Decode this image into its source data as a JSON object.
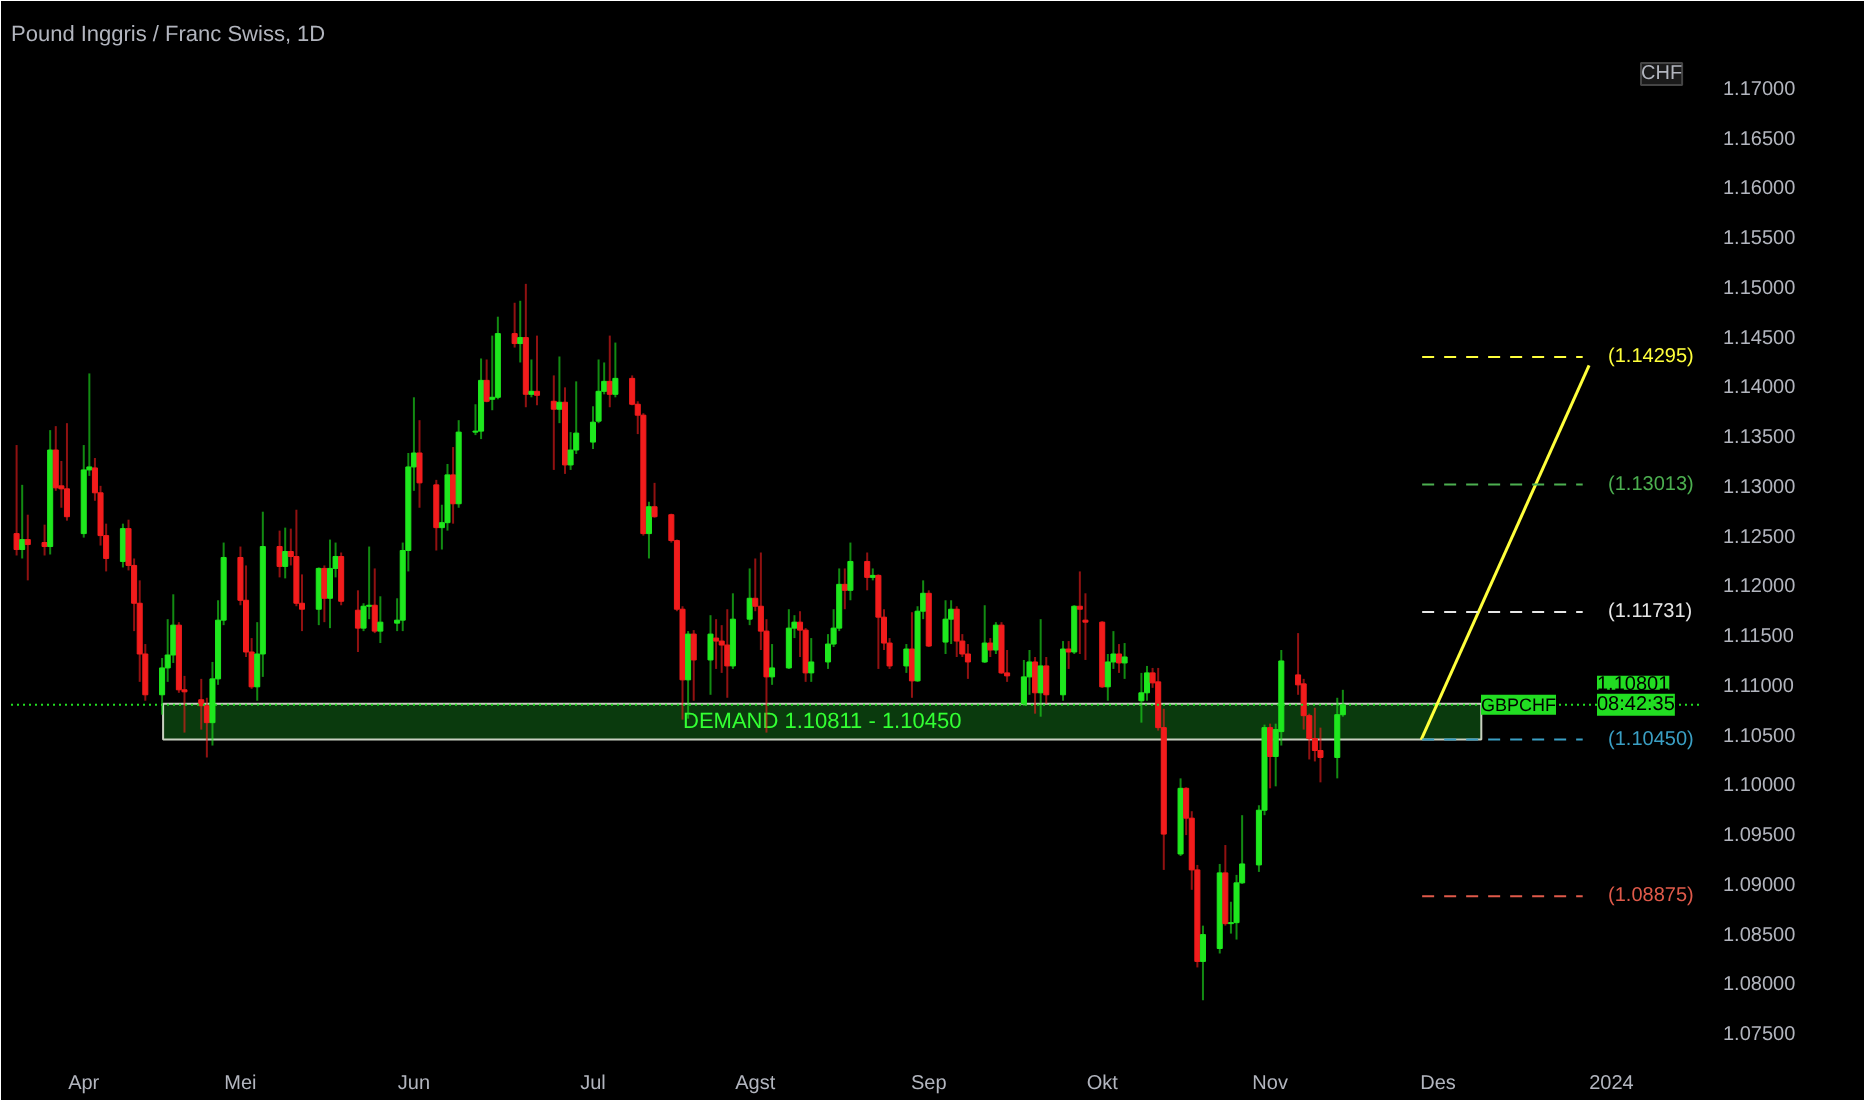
{
  "chart_data": {
    "type": "candlestick",
    "title": "Pound Inggris / Franc Swiss, 1D",
    "ylabel": "CHF",
    "x": [
      "2023-03-22",
      "2023-03-23",
      "2023-03-24",
      "2023-03-27",
      "2023-03-28",
      "2023-03-29",
      "2023-03-30",
      "2023-03-31",
      "2023-04-03",
      "2023-04-04",
      "2023-04-05",
      "2023-04-06",
      "2023-04-07",
      "2023-04-10",
      "2023-04-11",
      "2023-04-12",
      "2023-04-13",
      "2023-04-14",
      "2023-04-17",
      "2023-04-18",
      "2023-04-19",
      "2023-04-20",
      "2023-04-21",
      "2023-04-24",
      "2023-04-25",
      "2023-04-26",
      "2023-04-27",
      "2023-04-28",
      "2023-05-01",
      "2023-05-02",
      "2023-05-03",
      "2023-05-04",
      "2023-05-05",
      "2023-05-08",
      "2023-05-09",
      "2023-05-10",
      "2023-05-11",
      "2023-05-12",
      "2023-05-15",
      "2023-05-16",
      "2023-05-17",
      "2023-05-18",
      "2023-05-19",
      "2023-05-22",
      "2023-05-23",
      "2023-05-24",
      "2023-05-25",
      "2023-05-26",
      "2023-05-29",
      "2023-05-30",
      "2023-05-31",
      "2023-06-01",
      "2023-06-02",
      "2023-06-05",
      "2023-06-06",
      "2023-06-07",
      "2023-06-08",
      "2023-06-09",
      "2023-06-12",
      "2023-06-13",
      "2023-06-14",
      "2023-06-15",
      "2023-06-16",
      "2023-06-19",
      "2023-06-20",
      "2023-06-21",
      "2023-06-22",
      "2023-06-23",
      "2023-06-26",
      "2023-06-27",
      "2023-06-28",
      "2023-06-29",
      "2023-06-30",
      "2023-07-03",
      "2023-07-04",
      "2023-07-05",
      "2023-07-06",
      "2023-07-07",
      "2023-07-10",
      "2023-07-11",
      "2023-07-12",
      "2023-07-13",
      "2023-07-14",
      "2023-07-17",
      "2023-07-18",
      "2023-07-19",
      "2023-07-20",
      "2023-07-21",
      "2023-07-24",
      "2023-07-25",
      "2023-07-26",
      "2023-07-27",
      "2023-07-28",
      "2023-07-31",
      "2023-08-01",
      "2023-08-02",
      "2023-08-03",
      "2023-08-04",
      "2023-08-07",
      "2023-08-08",
      "2023-08-09",
      "2023-08-10",
      "2023-08-11",
      "2023-08-14",
      "2023-08-15",
      "2023-08-16",
      "2023-08-17",
      "2023-08-18",
      "2023-08-21",
      "2023-08-22",
      "2023-08-23",
      "2023-08-24",
      "2023-08-25",
      "2023-08-28",
      "2023-08-29",
      "2023-08-30",
      "2023-08-31",
      "2023-09-01",
      "2023-09-04",
      "2023-09-05",
      "2023-09-06",
      "2023-09-07",
      "2023-09-08",
      "2023-09-11",
      "2023-09-12",
      "2023-09-13",
      "2023-09-14",
      "2023-09-15",
      "2023-09-18",
      "2023-09-19",
      "2023-09-20",
      "2023-09-21",
      "2023-09-22",
      "2023-09-25",
      "2023-09-26",
      "2023-09-27",
      "2023-09-28",
      "2023-09-29",
      "2023-10-02",
      "2023-10-03",
      "2023-10-04",
      "2023-10-05",
      "2023-10-06",
      "2023-10-09",
      "2023-10-10",
      "2023-10-11",
      "2023-10-12",
      "2023-10-13",
      "2023-10-16",
      "2023-10-17",
      "2023-10-18",
      "2023-10-19",
      "2023-10-20",
      "2023-10-23",
      "2023-10-24",
      "2023-10-25",
      "2023-10-26",
      "2023-10-27",
      "2023-10-30",
      "2023-10-31",
      "2023-11-01",
      "2023-11-02",
      "2023-11-03",
      "2023-11-06",
      "2023-11-07",
      "2023-11-08",
      "2023-11-09",
      "2023-11-10",
      "2023-11-13",
      "2023-11-14"
    ],
    "ohlc": [
      [
        1.1252,
        1.1341,
        1.123,
        1.1236
      ],
      [
        1.1236,
        1.1301,
        1.1227,
        1.1246
      ],
      [
        1.1246,
        1.1271,
        1.1205,
        1.1241
      ],
      [
        1.1243,
        1.1261,
        1.123,
        1.1239
      ],
      [
        1.1239,
        1.1356,
        1.1231,
        1.1336
      ],
      [
        1.1336,
        1.136,
        1.1295,
        1.1298
      ],
      [
        1.13,
        1.1325,
        1.1278,
        1.1297
      ],
      [
        1.1297,
        1.1363,
        1.1265,
        1.1269
      ],
      [
        1.1252,
        1.1341,
        1.1248,
        1.1316
      ],
      [
        1.1316,
        1.1413,
        1.131,
        1.1319
      ],
      [
        1.1318,
        1.1328,
        1.1285,
        1.1293
      ],
      [
        1.1293,
        1.13,
        1.124,
        1.125
      ],
      [
        1.125,
        1.1262,
        1.1214,
        1.1227
      ],
      [
        1.1224,
        1.1262,
        1.1218,
        1.1257
      ],
      [
        1.1257,
        1.1266,
        1.1215,
        1.122
      ],
      [
        1.122,
        1.1227,
        1.1154,
        1.1182
      ],
      [
        1.1182,
        1.1205,
        1.1103,
        1.1131
      ],
      [
        1.1131,
        1.1141,
        1.1084,
        1.109
      ],
      [
        1.109,
        1.1127,
        1.107,
        1.1117
      ],
      [
        1.1117,
        1.1166,
        1.1103,
        1.113
      ],
      [
        1.113,
        1.1191,
        1.1122,
        1.116
      ],
      [
        1.116,
        1.1163,
        1.1092,
        1.1095
      ],
      [
        1.1095,
        1.1109,
        1.1052,
        1.1093
      ],
      [
        1.1085,
        1.1106,
        1.1055,
        1.1079
      ],
      [
        1.1079,
        1.1087,
        1.1027,
        1.1062
      ],
      [
        1.1062,
        1.1123,
        1.1039,
        1.1106
      ],
      [
        1.1106,
        1.1185,
        1.11,
        1.1165
      ],
      [
        1.1165,
        1.1243,
        1.116,
        1.1228
      ],
      [
        1.1228,
        1.1239,
        1.118,
        1.1185
      ],
      [
        1.1185,
        1.122,
        1.1128,
        1.1133
      ],
      [
        1.1133,
        1.1147,
        1.1096,
        1.1098
      ],
      [
        1.1098,
        1.1163,
        1.1084,
        1.1131
      ],
      [
        1.1131,
        1.1274,
        1.1108,
        1.1239
      ],
      [
        1.1239,
        1.1255,
        1.1208,
        1.1219
      ],
      [
        1.1219,
        1.1258,
        1.1207,
        1.1234
      ],
      [
        1.1234,
        1.1257,
        1.122,
        1.1229
      ],
      [
        1.1229,
        1.1276,
        1.1179,
        1.1182
      ],
      [
        1.1182,
        1.1211,
        1.1154,
        1.1176
      ],
      [
        1.1176,
        1.1218,
        1.116,
        1.1217
      ],
      [
        1.1217,
        1.122,
        1.1163,
        1.1187
      ],
      [
        1.1187,
        1.1246,
        1.1157,
        1.1217
      ],
      [
        1.1217,
        1.1243,
        1.1208,
        1.1229
      ],
      [
        1.1229,
        1.1233,
        1.118,
        1.1184
      ],
      [
        1.1175,
        1.1195,
        1.1133,
        1.1157
      ],
      [
        1.1157,
        1.1182,
        1.1154,
        1.1179
      ],
      [
        1.1179,
        1.1239,
        1.1166,
        1.118
      ],
      [
        1.118,
        1.1217,
        1.1152,
        1.1154
      ],
      [
        1.1154,
        1.1189,
        1.1142,
        1.1163
      ],
      [
        1.1162,
        1.1187,
        1.1154,
        1.1165
      ],
      [
        1.1165,
        1.1243,
        1.1154,
        1.1235
      ],
      [
        1.1235,
        1.1333,
        1.1214,
        1.1319
      ],
      [
        1.1319,
        1.1389,
        1.1295,
        1.1333
      ],
      [
        1.1333,
        1.1366,
        1.1278,
        1.1303
      ],
      [
        1.1301,
        1.1306,
        1.1235,
        1.1258
      ],
      [
        1.1258,
        1.1281,
        1.1236,
        1.1263
      ],
      [
        1.1263,
        1.1322,
        1.1255,
        1.1311
      ],
      [
        1.1311,
        1.1339,
        1.1262,
        1.1282
      ],
      [
        1.1282,
        1.1366,
        1.1278,
        1.1354
      ],
      [
        1.1354,
        1.1382,
        1.1351,
        1.1355
      ],
      [
        1.1355,
        1.1428,
        1.1347,
        1.1406
      ],
      [
        1.1406,
        1.1427,
        1.1384,
        1.1385
      ],
      [
        1.1387,
        1.1451,
        1.1376,
        1.1389
      ],
      [
        1.1389,
        1.147,
        1.1387,
        1.1453
      ],
      [
        1.1453,
        1.1484,
        1.1439,
        1.1443
      ],
      [
        1.1443,
        1.1486,
        1.1424,
        1.1449
      ],
      [
        1.1449,
        1.1503,
        1.1379,
        1.1392
      ],
      [
        1.1392,
        1.1427,
        1.1389,
        1.1395
      ],
      [
        1.1395,
        1.1451,
        1.1381,
        1.1391
      ],
      [
        1.1385,
        1.1411,
        1.1316,
        1.1377
      ],
      [
        1.1377,
        1.143,
        1.1363,
        1.1384
      ],
      [
        1.1384,
        1.1399,
        1.1312,
        1.1321
      ],
      [
        1.1321,
        1.1354,
        1.1316,
        1.1336
      ],
      [
        1.1336,
        1.1405,
        1.1332,
        1.1353
      ],
      [
        1.1344,
        1.138,
        1.1337,
        1.1364
      ],
      [
        1.1365,
        1.1427,
        1.1363,
        1.1395
      ],
      [
        1.1395,
        1.1424,
        1.1392,
        1.1405
      ],
      [
        1.1405,
        1.1451,
        1.1379,
        1.1392
      ],
      [
        1.1392,
        1.1444,
        1.1389,
        1.1408
      ],
      [
        1.1408,
        1.1411,
        1.1381,
        1.1382
      ],
      [
        1.1382,
        1.1385,
        1.1352,
        1.1371
      ],
      [
        1.1371,
        1.1373,
        1.125,
        1.1252
      ],
      [
        1.1252,
        1.1284,
        1.1227,
        1.1279
      ],
      [
        1.1279,
        1.1303,
        1.1268,
        1.1269
      ],
      [
        1.1271,
        1.1272,
        1.1243,
        1.1245
      ],
      [
        1.1245,
        1.1246,
        1.1174,
        1.1176
      ],
      [
        1.1176,
        1.1179,
        1.1065,
        1.1105
      ],
      [
        1.1105,
        1.1154,
        1.1066,
        1.1151
      ],
      [
        1.1151,
        1.1155,
        1.1084,
        1.1125
      ],
      [
        1.1125,
        1.117,
        1.109,
        1.1151
      ],
      [
        1.1147,
        1.1166,
        1.1116,
        1.1144
      ],
      [
        1.1144,
        1.116,
        1.1112,
        1.114
      ],
      [
        1.114,
        1.1176,
        1.1087,
        1.1119
      ],
      [
        1.1119,
        1.1192,
        1.1116,
        1.1166
      ],
      [
        1.1166,
        1.1217,
        1.116,
        1.1187
      ],
      [
        1.1187,
        1.1227,
        1.1174,
        1.1179
      ],
      [
        1.1179,
        1.1233,
        1.1135,
        1.1154
      ],
      [
        1.1154,
        1.1166,
        1.1052,
        1.1108
      ],
      [
        1.1108,
        1.1141,
        1.11,
        1.1117
      ],
      [
        1.1117,
        1.1176,
        1.1116,
        1.1157
      ],
      [
        1.1157,
        1.117,
        1.1147,
        1.1163
      ],
      [
        1.1163,
        1.1174,
        1.1128,
        1.1155
      ],
      [
        1.1155,
        1.1157,
        1.1103,
        1.1112
      ],
      [
        1.1112,
        1.1147,
        1.1103,
        1.1123
      ],
      [
        1.1123,
        1.1151,
        1.1116,
        1.1141
      ],
      [
        1.1141,
        1.1176,
        1.1138,
        1.1157
      ],
      [
        1.1157,
        1.1217,
        1.1154,
        1.1201
      ],
      [
        1.1201,
        1.1217,
        1.1176,
        1.1195
      ],
      [
        1.1195,
        1.1243,
        1.1185,
        1.1224
      ],
      [
        1.1224,
        1.1233,
        1.1195,
        1.1208
      ],
      [
        1.1208,
        1.1217,
        1.1205,
        1.121
      ],
      [
        1.121,
        1.1211,
        1.1116,
        1.1168
      ],
      [
        1.1168,
        1.1176,
        1.1135,
        1.1142
      ],
      [
        1.1142,
        1.1147,
        1.1116,
        1.1119
      ],
      [
        1.1119,
        1.1141,
        1.1112,
        1.1136
      ],
      [
        1.1136,
        1.1173,
        1.1087,
        1.1104
      ],
      [
        1.1104,
        1.1179,
        1.1103,
        1.1174
      ],
      [
        1.1174,
        1.1205,
        1.1166,
        1.1192
      ],
      [
        1.1192,
        1.1195,
        1.1138,
        1.1139
      ],
      [
        1.1143,
        1.1185,
        1.1131,
        1.1166
      ],
      [
        1.1166,
        1.1185,
        1.1141,
        1.1176
      ],
      [
        1.1176,
        1.1179,
        1.1128,
        1.1144
      ],
      [
        1.1144,
        1.1151,
        1.1128,
        1.1131
      ],
      [
        1.1131,
        1.1141,
        1.1106,
        1.1123
      ],
      [
        1.1123,
        1.118,
        1.1122,
        1.1142
      ],
      [
        1.1142,
        1.1147,
        1.1128,
        1.1135
      ],
      [
        1.1135,
        1.1163,
        1.1131,
        1.116
      ],
      [
        1.116,
        1.1163,
        1.1111,
        1.1112
      ],
      [
        1.1112,
        1.1135,
        1.1103,
        1.1109
      ],
      [
        1.1081,
        1.1125,
        1.1079,
        1.1108
      ],
      [
        1.1108,
        1.1135,
        1.109,
        1.1123
      ],
      [
        1.1123,
        1.1128,
        1.1071,
        1.1092
      ],
      [
        1.1092,
        1.1166,
        1.1068,
        1.1119
      ],
      [
        1.1119,
        1.1128,
        1.1081,
        1.109
      ],
      [
        1.109,
        1.1144,
        1.1084,
        1.1136
      ],
      [
        1.1136,
        1.1144,
        1.1116,
        1.1133
      ],
      [
        1.1133,
        1.118,
        1.1131,
        1.1179
      ],
      [
        1.1179,
        1.1214,
        1.1131,
        1.1176
      ],
      [
        1.1165,
        1.1192,
        1.1125,
        1.1163
      ],
      [
        1.1163,
        1.1164,
        1.1097,
        1.1098
      ],
      [
        1.1098,
        1.1131,
        1.1084,
        1.1123
      ],
      [
        1.1123,
        1.1154,
        1.1116,
        1.1131
      ],
      [
        1.1131,
        1.1141,
        1.1112,
        1.1122
      ],
      [
        1.1122,
        1.1142,
        1.1106,
        1.1128
      ],
      [
        1.1084,
        1.1112,
        1.1062,
        1.1092
      ],
      [
        1.1092,
        1.1119,
        1.1084,
        1.1112
      ],
      [
        1.1112,
        1.1117,
        1.1097,
        1.1102
      ],
      [
        1.1103,
        1.1117,
        1.1054,
        1.1057
      ],
      [
        1.1057,
        1.1076,
        1.0914,
        1.095
      ],
      [
        1.093,
        1.1006,
        1.0928,
        1.0996
      ],
      [
        1.0996,
        1.0997,
        1.0949,
        1.0966
      ],
      [
        1.0966,
        1.0973,
        1.0894,
        1.0914
      ],
      [
        1.0914,
        1.0919,
        1.0816,
        1.0822
      ],
      [
        1.0822,
        1.0858,
        1.0783,
        1.0849
      ],
      [
        1.0835,
        1.092,
        1.083,
        1.0911
      ],
      [
        1.0911,
        1.0939,
        1.0858,
        1.086
      ],
      [
        1.086,
        1.0882,
        1.085,
        1.0861
      ],
      [
        1.0861,
        1.0909,
        1.0844,
        1.0901
      ],
      [
        1.0901,
        1.0969,
        1.09,
        1.092
      ],
      [
        1.0919,
        1.0979,
        1.0912,
        1.0974
      ],
      [
        1.0974,
        1.106,
        1.0969,
        1.1057
      ],
      [
        1.1057,
        1.1061,
        1.0996,
        1.1028
      ],
      [
        1.1028,
        1.1061,
        1.0998,
        1.1055
      ],
      [
        1.1053,
        1.1135,
        1.1039,
        1.1124
      ],
      [
        1.111,
        1.1152,
        1.109,
        1.11
      ],
      [
        1.1101,
        1.1106,
        1.1055,
        1.1069
      ],
      [
        1.1069,
        1.1071,
        1.1025,
        1.1046
      ],
      [
        1.1046,
        1.1077,
        1.1023,
        1.1034
      ],
      [
        1.1034,
        1.1057,
        1.1002,
        1.1027
      ],
      [
        1.1027,
        1.1087,
        1.1006,
        1.107
      ],
      [
        1.107,
        1.1095,
        1.1068,
        1.108
      ]
    ],
    "series": [
      {
        "type": "line",
        "color": "#ffff3b",
        "x": [
          "2023-11-28",
          "2023-12-28"
        ],
        "values": [
          1.1045,
          1.1421
        ]
      }
    ],
    "xlim": [
      "2023-03-21",
      "2024-01-17"
    ],
    "ylim": [
      1.0732,
      1.1731
    ],
    "xticks": [
      {
        "value": "2023-04-03",
        "label": "Apr"
      },
      {
        "value": "2023-05-01",
        "label": "Mei"
      },
      {
        "value": "2023-06-01",
        "label": "Jun"
      },
      {
        "value": "2023-07-03",
        "label": "Jul"
      },
      {
        "value": "2023-08-01",
        "label": "Agst"
      },
      {
        "value": "2023-09-01",
        "label": "Sep"
      },
      {
        "value": "2023-10-02",
        "label": "Okt"
      },
      {
        "value": "2023-11-01",
        "label": "Nov"
      },
      {
        "value": "2023-12-01",
        "label": "Des"
      },
      {
        "value": "2024-01-01",
        "label": "2024"
      }
    ],
    "yticks": [
      {
        "value": 1.075,
        "label": "1.07500"
      },
      {
        "value": 1.08,
        "label": "1.08000"
      },
      {
        "value": 1.085,
        "label": "1.08500"
      },
      {
        "value": 1.09,
        "label": "1.09000"
      },
      {
        "value": 1.095,
        "label": "1.09500"
      },
      {
        "value": 1.1,
        "label": "1.10000"
      },
      {
        "value": 1.105,
        "label": "1.10500"
      },
      {
        "value": 1.11,
        "label": "1.11000"
      },
      {
        "value": 1.115,
        "label": "1.11500"
      },
      {
        "value": 1.12,
        "label": "1.12000"
      },
      {
        "value": 1.125,
        "label": "1.12500"
      },
      {
        "value": 1.13,
        "label": "1.13000"
      },
      {
        "value": 1.135,
        "label": "1.13500"
      },
      {
        "value": 1.14,
        "label": "1.14000"
      },
      {
        "value": 1.145,
        "label": "1.14500"
      },
      {
        "value": 1.15,
        "label": "1.15000"
      },
      {
        "value": 1.155,
        "label": "1.15500"
      },
      {
        "value": 1.16,
        "label": "1.16000"
      },
      {
        "value": 1.165,
        "label": "1.16500"
      },
      {
        "value": 1.17,
        "label": "1.17000"
      }
    ],
    "bands": [
      {
        "axis": "y",
        "from": 1.1045,
        "to": 1.10811,
        "label": "DEMAND 1.10811 - 1.10450",
        "color": "#0d4d12"
      }
    ],
    "ref_lines": [
      {
        "axis": "y",
        "value": 1.14295,
        "label": "(1.14295)",
        "color": "#ffff3b",
        "line_style": "dashed"
      },
      {
        "axis": "y",
        "value": 1.13013,
        "label": "(1.13013)",
        "color": "#4caf50",
        "line_style": "dashed"
      },
      {
        "axis": "y",
        "value": 1.11731,
        "label": "(1.11731)",
        "color": "#e6e6e6",
        "line_style": "dashed"
      },
      {
        "axis": "y",
        "value": 1.1045,
        "label": "(1.10450)",
        "color": "#3a9fc4",
        "line_style": "dashed"
      },
      {
        "axis": "y",
        "value": 1.08875,
        "label": "(1.08875)",
        "color": "#e05a4a",
        "line_style": "dashed"
      },
      {
        "axis": "y",
        "value": 1.10801,
        "label": "GBPCHF",
        "color": "#22dd22",
        "line_style": "dotted"
      }
    ],
    "annotations": [
      "1.10801",
      "08:42:35"
    ],
    "grid": false
  }
}
